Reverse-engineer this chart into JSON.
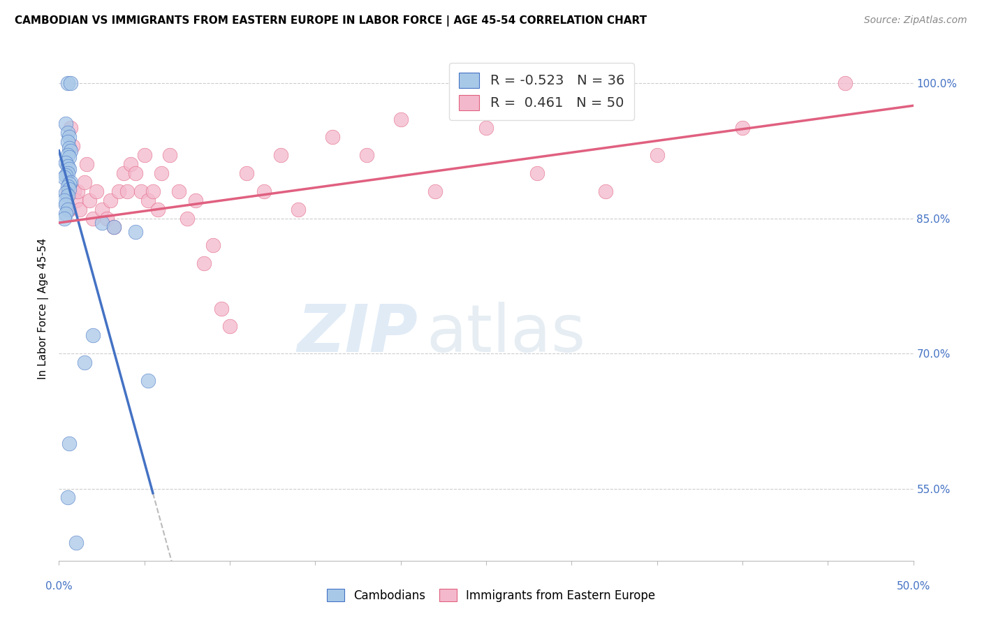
{
  "title": "CAMBODIAN VS IMMIGRANTS FROM EASTERN EUROPE IN LABOR FORCE | AGE 45-54 CORRELATION CHART",
  "source": "Source: ZipAtlas.com",
  "ylabel": "In Labor Force | Age 45-54",
  "legend_label1": "Cambodians",
  "legend_label2": "Immigrants from Eastern Europe",
  "R1": -0.523,
  "N1": 36,
  "R2": 0.461,
  "N2": 50,
  "color_blue": "#A8C8E8",
  "color_pink": "#F4B8CC",
  "color_blue_line": "#4472C4",
  "color_pink_line": "#E06080",
  "color_gray_dashed": "#BBBBBB",
  "watermark_zip": "ZIP",
  "watermark_atlas": "atlas",
  "blue_scatter_x": [
    0.5,
    0.7,
    0.4,
    0.5,
    0.6,
    0.5,
    0.6,
    0.7,
    0.5,
    0.6,
    0.4,
    0.5,
    0.6,
    0.5,
    0.4,
    0.3,
    0.7,
    0.6,
    0.5,
    0.6,
    0.4,
    0.5,
    0.3,
    0.4,
    0.5,
    0.4,
    0.3,
    2.5,
    3.2,
    4.5,
    2.0,
    5.2,
    0.6,
    0.5,
    1.5,
    1.0
  ],
  "blue_scatter_y": [
    100.0,
    100.0,
    95.5,
    94.5,
    94.0,
    93.5,
    92.8,
    92.5,
    92.0,
    91.8,
    91.2,
    90.8,
    90.5,
    90.0,
    89.8,
    89.5,
    89.0,
    88.8,
    88.5,
    88.2,
    87.8,
    87.5,
    87.0,
    86.5,
    86.0,
    85.5,
    85.0,
    84.5,
    84.0,
    83.5,
    72.0,
    67.0,
    60.0,
    54.0,
    69.0,
    49.0
  ],
  "pink_scatter_x": [
    0.5,
    0.6,
    0.7,
    0.8,
    0.9,
    1.0,
    1.1,
    1.2,
    1.5,
    1.6,
    1.8,
    2.0,
    2.2,
    2.5,
    2.8,
    3.0,
    3.2,
    3.5,
    3.8,
    4.0,
    4.2,
    4.5,
    4.8,
    5.0,
    5.2,
    5.5,
    5.8,
    6.0,
    6.5,
    7.0,
    7.5,
    8.0,
    8.5,
    9.0,
    9.5,
    10.0,
    11.0,
    12.0,
    13.0,
    14.0,
    16.0,
    18.0,
    20.0,
    22.0,
    25.0,
    28.0,
    32.0,
    35.0,
    40.0,
    46.0
  ],
  "pink_scatter_y": [
    88.0,
    86.0,
    95.0,
    93.0,
    88.0,
    87.0,
    88.0,
    86.0,
    89.0,
    91.0,
    87.0,
    85.0,
    88.0,
    86.0,
    85.0,
    87.0,
    84.0,
    88.0,
    90.0,
    88.0,
    91.0,
    90.0,
    88.0,
    92.0,
    87.0,
    88.0,
    86.0,
    90.0,
    92.0,
    88.0,
    85.0,
    87.0,
    80.0,
    82.0,
    75.0,
    73.0,
    90.0,
    88.0,
    92.0,
    86.0,
    94.0,
    92.0,
    96.0,
    88.0,
    95.0,
    90.0,
    88.0,
    92.0,
    95.0,
    100.0
  ],
  "xlim": [
    0.0,
    50.0
  ],
  "ylim": [
    47.0,
    103.0
  ],
  "y_ticks": [
    55.0,
    70.0,
    85.0,
    100.0
  ],
  "y_tick_labels": [
    "55.0%",
    "70.0%",
    "85.0%",
    "100.0%"
  ],
  "x_ticks": [
    0,
    5,
    10,
    15,
    20,
    25,
    30,
    35,
    40,
    45,
    50
  ],
  "blue_trend_x0": 0.0,
  "blue_trend_y0": 92.5,
  "blue_trend_x1": 5.5,
  "blue_trend_y1": 54.5,
  "blue_solid_end": 5.5,
  "pink_trend_x0": 0.0,
  "pink_trend_y0": 84.5,
  "pink_trend_x1": 50.0,
  "pink_trend_y1": 97.5
}
